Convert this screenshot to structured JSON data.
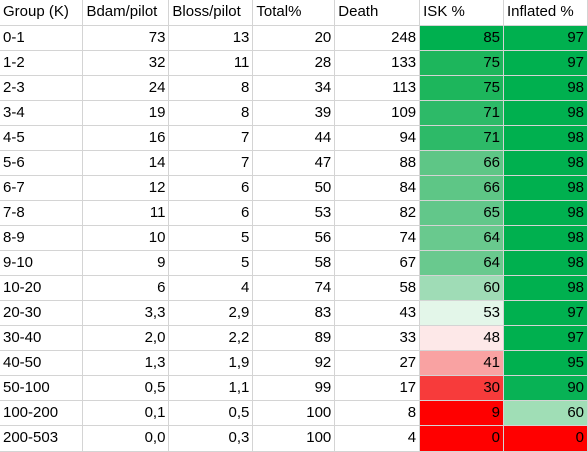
{
  "sheet": {
    "headers": [
      "Group (K)",
      "Bdam/pilot",
      "Bloss/pilot",
      "Total%",
      "Death",
      "ISK %",
      "Inflated %"
    ],
    "rows": [
      {
        "cells": [
          "0-1",
          "73",
          "13",
          "20",
          "248",
          "85",
          "97"
        ],
        "isk_color": "#00b04f",
        "inflated_color": "#00b04f"
      },
      {
        "cells": [
          "1-2",
          "32",
          "11",
          "28",
          "133",
          "75",
          "97"
        ],
        "isk_color": "#1db65c",
        "inflated_color": "#00b04f"
      },
      {
        "cells": [
          "2-3",
          "24",
          "8",
          "34",
          "113",
          "75",
          "98"
        ],
        "isk_color": "#1db65c",
        "inflated_color": "#00b04f"
      },
      {
        "cells": [
          "3-4",
          "19",
          "8",
          "39",
          "109",
          "71",
          "98"
        ],
        "isk_color": "#2dba68",
        "inflated_color": "#00b04f"
      },
      {
        "cells": [
          "4-5",
          "16",
          "7",
          "44",
          "94",
          "71",
          "98"
        ],
        "isk_color": "#2dba68",
        "inflated_color": "#00b04f"
      },
      {
        "cells": [
          "5-6",
          "14",
          "7",
          "47",
          "88",
          "66",
          "98"
        ],
        "isk_color": "#5ec686",
        "inflated_color": "#00b04f"
      },
      {
        "cells": [
          "6-7",
          "12",
          "6",
          "50",
          "84",
          "66",
          "98"
        ],
        "isk_color": "#5ec686",
        "inflated_color": "#00b04f"
      },
      {
        "cells": [
          "7-8",
          "11",
          "6",
          "53",
          "82",
          "65",
          "98"
        ],
        "isk_color": "#62c78a",
        "inflated_color": "#00b04f"
      },
      {
        "cells": [
          "8-9",
          "10",
          "5",
          "56",
          "74",
          "64",
          "98"
        ],
        "isk_color": "#69c98e",
        "inflated_color": "#00b04f"
      },
      {
        "cells": [
          "9-10",
          "9",
          "5",
          "58",
          "67",
          "64",
          "98"
        ],
        "isk_color": "#69c98e",
        "inflated_color": "#00b04f"
      },
      {
        "cells": [
          "10-20",
          "6",
          "4",
          "74",
          "58",
          "60",
          "98"
        ],
        "isk_color": "#9fdcb6",
        "inflated_color": "#00b04f"
      },
      {
        "cells": [
          "20-30",
          "3,3",
          "2,9",
          "83",
          "43",
          "53",
          "97"
        ],
        "isk_color": "#e3f6e9",
        "inflated_color": "#00b04f"
      },
      {
        "cells": [
          "30-40",
          "2,0",
          "2,2",
          "89",
          "33",
          "48",
          "97"
        ],
        "isk_color": "#fde8e8",
        "inflated_color": "#00b04f"
      },
      {
        "cells": [
          "40-50",
          "1,3",
          "1,9",
          "92",
          "27",
          "41",
          "95"
        ],
        "isk_color": "#f9a2a2",
        "inflated_color": "#00b04f"
      },
      {
        "cells": [
          "50-100",
          "0,5",
          "1,1",
          "99",
          "17",
          "30",
          "90"
        ],
        "isk_color": "#f73b3b",
        "inflated_color": "#08b255"
      },
      {
        "cells": [
          "100-200",
          "0,1",
          "0,5",
          "100",
          "8",
          "9",
          "60"
        ],
        "isk_color": "#ff0000",
        "inflated_color": "#a0deb6"
      },
      {
        "cells": [
          "200-503",
          "0,0",
          "0,3",
          "100",
          "4",
          "0",
          "0"
        ],
        "isk_color": "#ff0000",
        "inflated_color": "#ff0000"
      }
    ]
  }
}
